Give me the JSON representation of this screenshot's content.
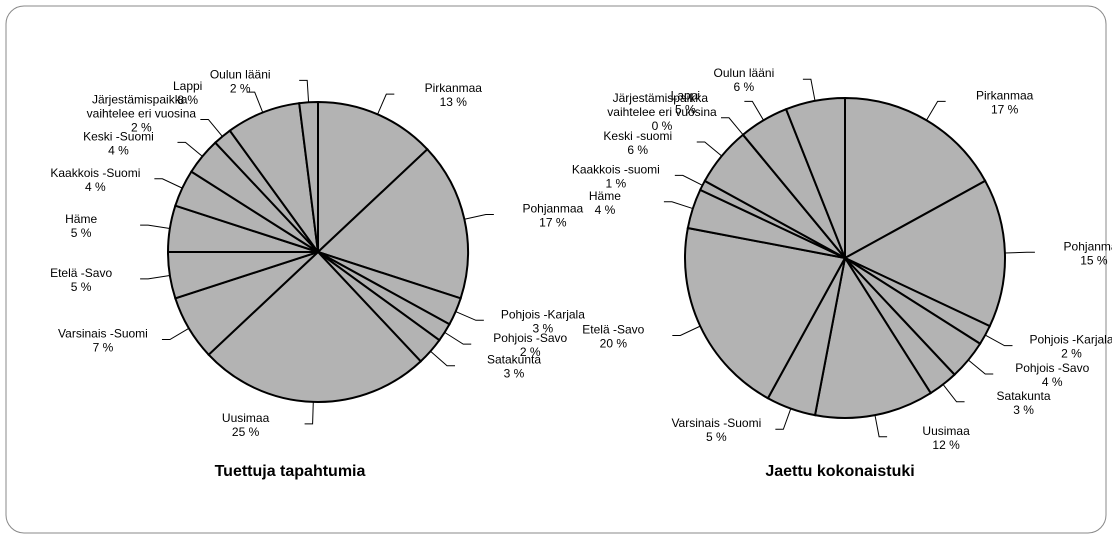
{
  "chart_data": [
    {
      "type": "pie",
      "title": "Tuettuja tapahtumia",
      "color": "#b3b3b3",
      "categories": [
        "Pirkanmaa",
        "Pohjanmaa",
        "Pohjois -Karjala",
        "Pohjois -Savo",
        "Satakunta",
        "Uusimaa",
        "Varsinais -Suomi",
        "Etelä -Savo",
        "Häme",
        "Kaakkois -Suomi",
        "Keski -Suomi",
        "Järjestämispaikka vaihtelee eri vuosina",
        "Lappi",
        "Oulun lääni"
      ],
      "values": [
        13,
        17,
        3,
        2,
        3,
        25,
        7,
        5,
        5,
        4,
        4,
        2,
        8,
        2
      ],
      "value_labels": [
        "13 %",
        "17 %",
        "3 %",
        "2 %",
        "3 %",
        "25 %",
        "7 %",
        "5 %",
        "5 %",
        "4 %",
        "4 %",
        "2 %",
        "8 %",
        "2 %"
      ]
    },
    {
      "type": "pie",
      "title": "Jaettu kokonaistuki",
      "color": "#b3b3b3",
      "categories": [
        "Pirkanmaa",
        "Pohjanmaa",
        "Pohjois -Karjala",
        "Pohjois -Savo",
        "Satakunta",
        "Uusimaa",
        "Varsinais -Suomi",
        "Etelä -Savo",
        "Häme",
        "Kaakkois -suomi",
        "Keski -suomi",
        "Järjestämispaikka vaihtelee eri vuosina",
        "Lappi",
        "Oulun lääni"
      ],
      "values": [
        17,
        15,
        2,
        4,
        3,
        12,
        5,
        20,
        4,
        1,
        6,
        0,
        5,
        6
      ],
      "value_labels": [
        "17 %",
        "15 %",
        "2 %",
        "4 %",
        "3 %",
        "12 %",
        "5 %",
        "20 %",
        "4 %",
        "1 %",
        "6 %",
        "0 %",
        "5 %",
        "6 %"
      ]
    }
  ]
}
